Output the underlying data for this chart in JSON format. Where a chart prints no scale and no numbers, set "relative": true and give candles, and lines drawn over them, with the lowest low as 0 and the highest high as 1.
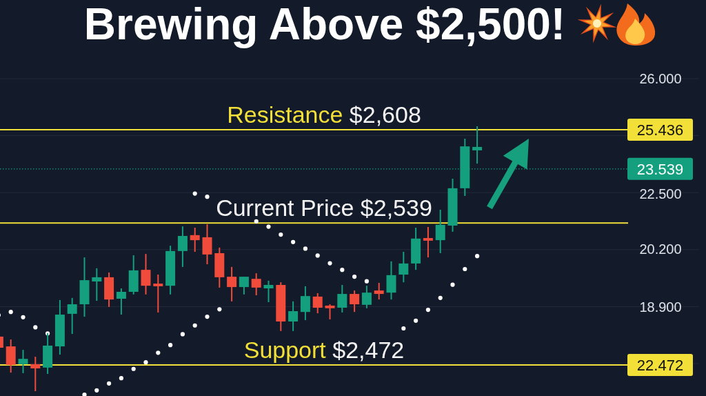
{
  "chart_data": {
    "type": "candlestick",
    "title": "Brewing Above $2,500!",
    "relative": true,
    "categories": [
      null,
      null,
      null,
      null,
      null,
      null,
      null,
      null,
      null,
      null,
      null,
      null,
      null,
      null,
      null,
      null,
      null,
      null,
      null,
      null,
      null,
      null,
      null,
      null,
      null,
      null,
      null,
      null,
      null,
      null,
      null,
      null,
      null,
      null,
      null,
      null,
      null,
      null,
      null,
      null
    ],
    "ohlc": [
      [
        0.206,
        0.206,
        0.164,
        0.164
      ],
      [
        0.169,
        0.195,
        0.07,
        0.099
      ],
      [
        0.102,
        0.156,
        0.068,
        0.122
      ],
      [
        0.102,
        0.13,
        0.0,
        0.086
      ],
      [
        0.089,
        0.219,
        0.065,
        0.172
      ],
      [
        0.169,
        0.344,
        0.138,
        0.289
      ],
      [
        0.292,
        0.352,
        0.216,
        0.328
      ],
      [
        0.328,
        0.505,
        0.281,
        0.419
      ],
      [
        0.414,
        0.464,
        0.341,
        0.43
      ],
      [
        0.43,
        0.448,
        0.318,
        0.346
      ],
      [
        0.349,
        0.388,
        0.289,
        0.375
      ],
      [
        0.375,
        0.513,
        0.365,
        0.456
      ],
      [
        0.458,
        0.518,
        0.365,
        0.398
      ],
      [
        0.406,
        0.44,
        0.297,
        0.396
      ],
      [
        0.398,
        0.549,
        0.365,
        0.529
      ],
      [
        0.529,
        0.622,
        0.469,
        0.586
      ],
      [
        0.589,
        0.617,
        0.526,
        0.57
      ],
      [
        0.581,
        0.63,
        0.479,
        0.516
      ],
      [
        0.521,
        0.542,
        0.391,
        0.43
      ],
      [
        0.432,
        0.469,
        0.339,
        0.393
      ],
      [
        0.393,
        0.432,
        0.365,
        0.432
      ],
      [
        0.424,
        0.445,
        0.362,
        0.391
      ],
      [
        0.388,
        0.417,
        0.336,
        0.401
      ],
      [
        0.401,
        0.411,
        0.227,
        0.263
      ],
      [
        0.263,
        0.339,
        0.227,
        0.302
      ],
      [
        0.299,
        0.396,
        0.268,
        0.359
      ],
      [
        0.357,
        0.37,
        0.294,
        0.315
      ],
      [
        0.323,
        0.328,
        0.271,
        0.313
      ],
      [
        0.315,
        0.401,
        0.297,
        0.367
      ],
      [
        0.367,
        0.38,
        0.299,
        0.328
      ],
      [
        0.326,
        0.398,
        0.313,
        0.372
      ],
      [
        0.38,
        0.409,
        0.346,
        0.367
      ],
      [
        0.372,
        0.49,
        0.346,
        0.438
      ],
      [
        0.44,
        0.526,
        0.411,
        0.482
      ],
      [
        0.482,
        0.617,
        0.458,
        0.576
      ],
      [
        0.578,
        0.62,
        0.505,
        0.568
      ],
      [
        0.57,
        0.685,
        0.521,
        0.628
      ],
      [
        0.625,
        0.802,
        0.602,
        0.766
      ],
      [
        0.766,
        0.953,
        0.737,
        0.924
      ],
      [
        0.909,
        1.0,
        0.859,
        0.922
      ]
    ],
    "colors": [
      "#f14b3c",
      "#f14b3c",
      "#14a07f",
      "#f14b3c",
      "#14a07f",
      "#14a07f",
      "#14a07f",
      "#14a07f",
      "#14a07f",
      "#f14b3c",
      "#14a07f",
      "#14a07f",
      "#f14b3c",
      "#f14b3c",
      "#14a07f",
      "#14a07f",
      "#f14b3c",
      "#f14b3c",
      "#f14b3c",
      "#f14b3c",
      "#14a07f",
      "#f14b3c",
      "#14a07f",
      "#f14b3c",
      "#14a07f",
      "#14a07f",
      "#f14b3c",
      "#f14b3c",
      "#14a07f",
      "#f14b3c",
      "#14a07f",
      "#f14b3c",
      "#14a07f",
      "#14a07f",
      "#14a07f",
      "#f14b3c",
      "#14a07f",
      "#14a07f",
      "#14a07f",
      "#14a07f"
    ],
    "series": [
      {
        "type": "scatter",
        "color": "#ffffff",
        "values": [
          0.287,
          0.299,
          0.279,
          0.241,
          0.218,
          null,
          null,
          -0.013,
          0.003,
          0.029,
          0.049,
          0.084,
          0.109,
          0.145,
          0.174,
          0.215,
          0.248,
          0.281,
          0.309,
          null,
          null,
          null,
          null,
          null,
          null,
          null,
          null,
          null,
          null,
          null,
          null,
          null,
          null,
          0.237,
          0.266,
          0.307,
          0.352,
          0.402,
          0.461,
          0.51
        ]
      },
      {
        "type": "scatter",
        "color": "#ffffff",
        "values": [
          null,
          null,
          null,
          null,
          null,
          null,
          null,
          null,
          null,
          null,
          null,
          null,
          null,
          null,
          null,
          null,
          0.746,
          0.734,
          null,
          null,
          null,
          0.641,
          0.621,
          0.591,
          0.563,
          0.538,
          0.512,
          0.483,
          0.458,
          0.432,
          0.415,
          null,
          null,
          null,
          null,
          null,
          null,
          null,
          null,
          null
        ]
      }
    ],
    "marker": "circle",
    "ref_lines": [
      {
        "axis": "y",
        "value": 0.987,
        "color": "#f2df38"
      },
      {
        "axis": "y",
        "value": 0.839,
        "color": "#14a07f",
        "line_style": "dotted"
      },
      {
        "axis": "y",
        "value": 0.635,
        "color": "#f2df38"
      },
      {
        "axis": "y",
        "value": 0.099,
        "color": "#f2df38"
      }
    ],
    "annotations": [
      "Resistance $2,608",
      "25.436",
      "23.539",
      "Current Price $2,539",
      "Support $2,472",
      "22.472",
      "26.000",
      "22.500",
      "20.200",
      "18.900"
    ],
    "grid": "y"
  }
}
